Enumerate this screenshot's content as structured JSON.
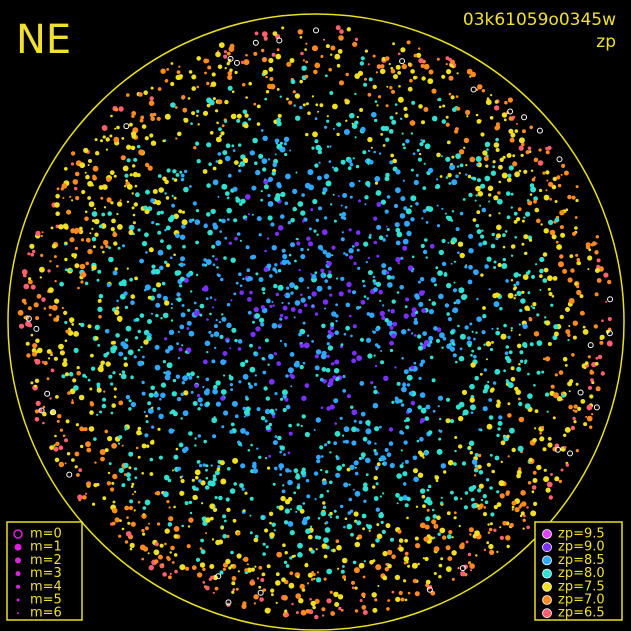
{
  "header": {
    "corner": "NE",
    "frame_id": "03k61059o0345w",
    "quantity": "zp"
  },
  "magnitude_legend": {
    "labels": [
      "m=0",
      "m=1",
      "m=2",
      "m=3",
      "m=4",
      "m=5",
      "m=6"
    ],
    "color": "#e020e0"
  },
  "zp_legend": {
    "entries": [
      {
        "label": "zp=9.5",
        "color": "#e040ff"
      },
      {
        "label": "zp=9.0",
        "color": "#7a30ff"
      },
      {
        "label": "zp=8.5",
        "color": "#30a8ff"
      },
      {
        "label": "zp=8.0",
        "color": "#30e0d0"
      },
      {
        "label": "zp=7.5",
        "color": "#f0e020"
      },
      {
        "label": "zp=7.0",
        "color": "#ff8a20"
      },
      {
        "label": "zp=6.5",
        "color": "#ff6070"
      }
    ]
  }
}
